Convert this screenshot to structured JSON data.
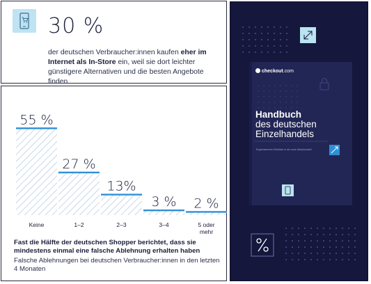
{
  "stat": {
    "value": "30 %",
    "text_before": "der deutschen Verbraucher:innen kaufen ",
    "text_bold": "eher im Internet als In-Store",
    "text_after": " ein, weil sie dort leichter günstigere Alternativen und die besten Angebote finden",
    "icon": "shopping-phone-icon"
  },
  "chart_data": {
    "type": "bar",
    "categories": [
      "Keine",
      "1–2",
      "2–3",
      "3–4",
      "5 oder mehr"
    ],
    "values": [
      55,
      27,
      13,
      3,
      2
    ],
    "value_labels": [
      "55 %",
      "27 %",
      "13%",
      "3 %",
      "2 %"
    ],
    "title": "Fast die Hälfte der deutschen Shopper berichtet, dass sie mindestens einmal eine falsche Ablehnung erhalten haben",
    "subtitle": "Falsche Ablehnungen bei deutschen Verbraucher:innen in den letzten 4 Monaten",
    "ylim": [
      0,
      60
    ],
    "grid": false,
    "colors": {
      "hatch": "#a9c4dc",
      "top_line": "#2e8fd6",
      "label": "#1b1f3a"
    }
  },
  "book": {
    "brand": "checkout",
    "brand_suffix": ".com",
    "title_line1": "Handbuch",
    "title_line2": "des deutschen",
    "title_line3": "Einzelhandels",
    "subtitle": "Ergebnisreiche Einblicke in die neue Ablaufmodell",
    "colors": {
      "panel": "#15173d",
      "book": "#222655",
      "accent": "#8fd3e8"
    },
    "icons": [
      "expand-arrows-icon",
      "lock-icon",
      "percent-icon",
      "phone-icon",
      "trend-arrow-icon",
      "dot-grid-pattern"
    ]
  }
}
